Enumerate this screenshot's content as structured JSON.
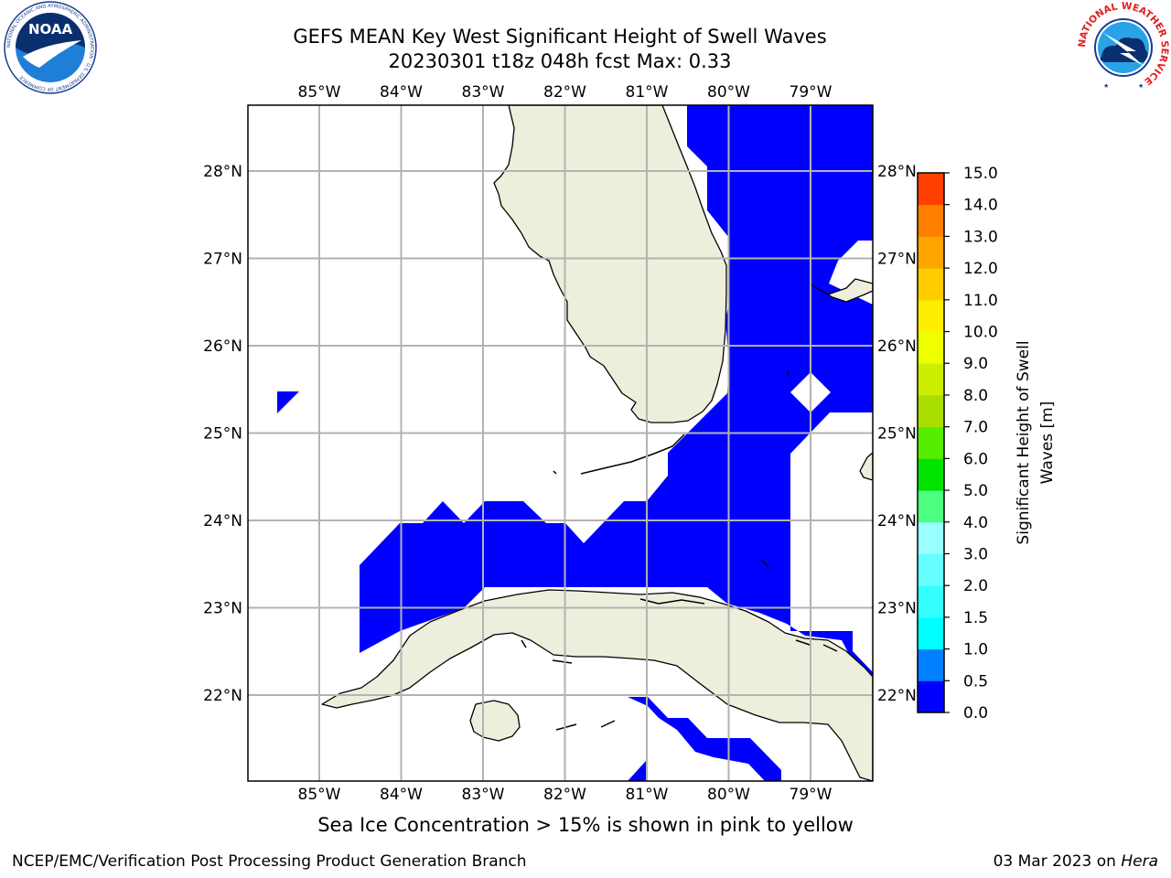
{
  "title_line1": "GEFS MEAN Key West Significant Height of Swell Waves",
  "title_line2": "20230301 t18z 048h fcst   Max: 0.33",
  "longitudes": [
    "85°W",
    "84°W",
    "83°W",
    "82°W",
    "81°W",
    "80°W",
    "79°W"
  ],
  "latitudes": [
    "28°N",
    "27°N",
    "26°N",
    "25°N",
    "24°N",
    "23°N",
    "22°N"
  ],
  "colorbar": {
    "label_line1": "Significant Height of Swell",
    "label_line2": "Waves [m]",
    "ticks": [
      "0.0",
      "0.5",
      "1.0",
      "1.5",
      "2.0",
      "3.0",
      "4.0",
      "5.0",
      "6.0",
      "7.0",
      "8.0",
      "9.0",
      "10.0",
      "11.0",
      "12.0",
      "13.0",
      "14.0",
      "15.0"
    ],
    "colors": [
      "#0000ff",
      "#0080ff",
      "#00ffff",
      "#33ffff",
      "#66ffff",
      "#99ffff",
      "#4dff80",
      "#00e400",
      "#55ee00",
      "#aadd00",
      "#ccee00",
      "#eeff00",
      "#ffee00",
      "#ffcc00",
      "#ffa500",
      "#ff8000",
      "#ff4000",
      "#ff0000"
    ]
  },
  "colors": {
    "land": "#eeeedd",
    "sea_field": "#0000ff",
    "grid": "#b3b3b3"
  },
  "note": "Sea Ice Concentration > 15% is shown in pink to yellow",
  "credit_left": "NCEP/EMC/Verification Post Processing Product Generation Branch",
  "credit_date": "03 Mar 2023 on",
  "credit_system": "Hera",
  "logo_left": {
    "text": "NOAA",
    "ring_text": "NATIONAL OCEANIC AND ATMOSPHERIC ADMINISTRATION · U.S. DEPARTMENT OF COMMERCE"
  },
  "logo_right": {
    "ring_text": "NATIONAL WEATHER SERVICE"
  }
}
